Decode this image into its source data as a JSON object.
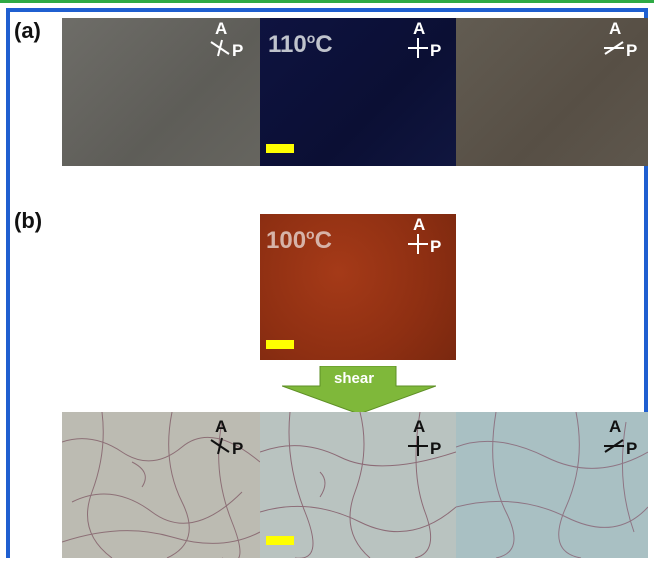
{
  "labels": {
    "a": "(a)",
    "b": "(b)"
  },
  "temps": {
    "a_middle": "110",
    "b_top": "100"
  },
  "arrow_label": "shear",
  "polarizer": {
    "A": "A",
    "P": "P"
  },
  "colors": {
    "frame": "#1f5fd0",
    "scalebar": "#ffff00",
    "arrow": "#7fb83a"
  }
}
